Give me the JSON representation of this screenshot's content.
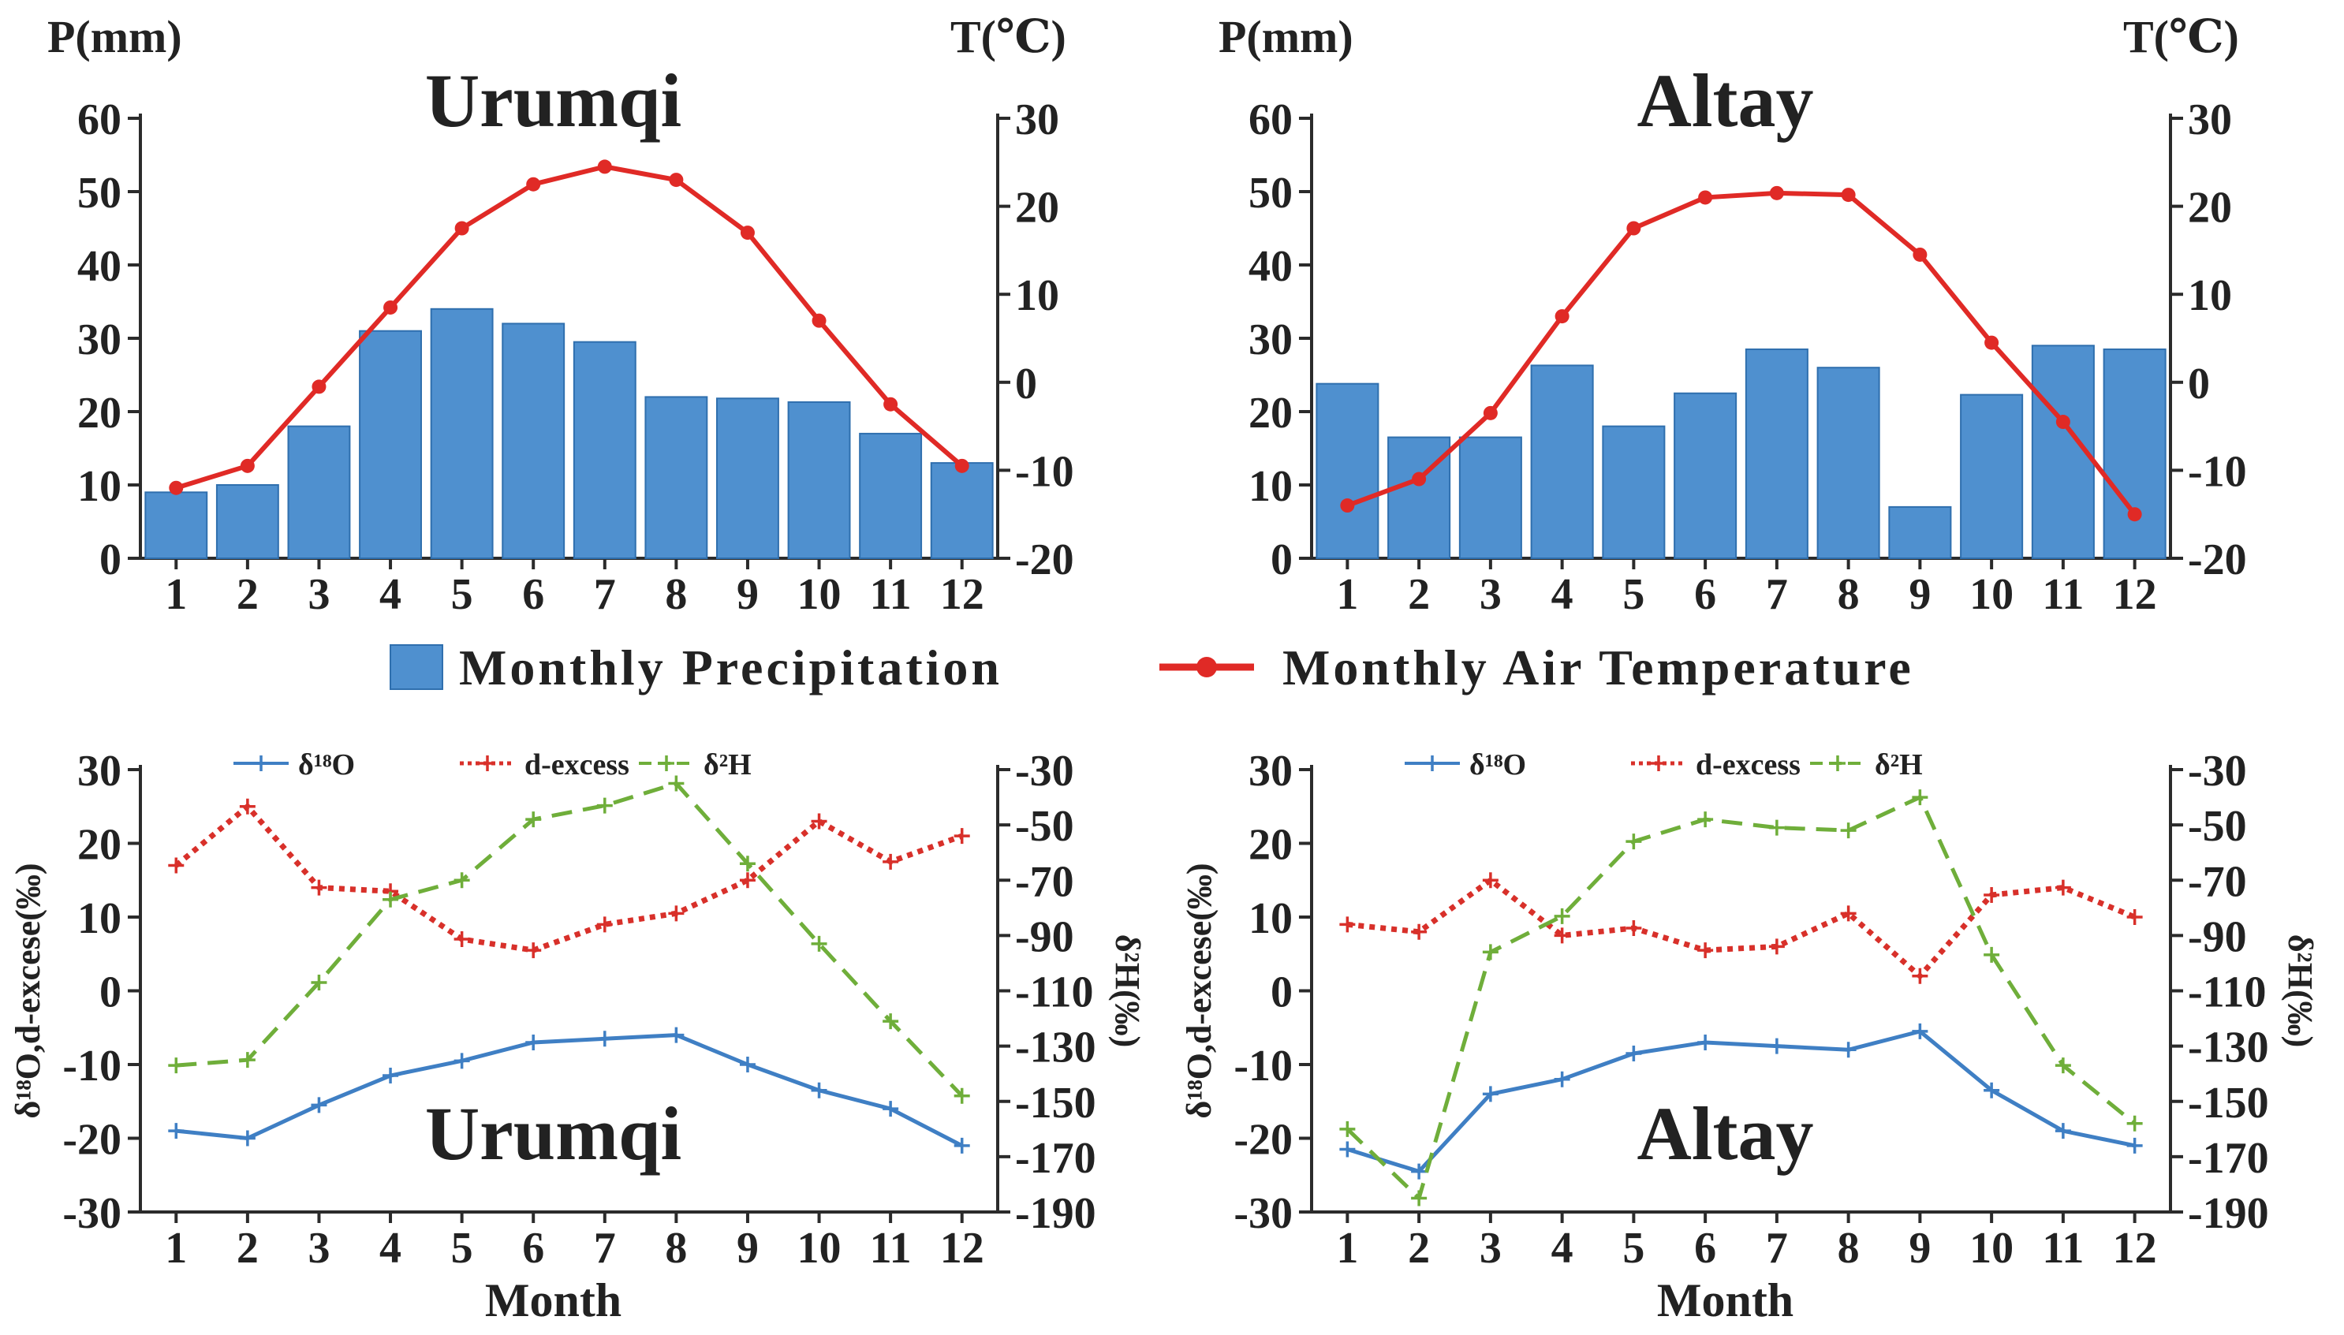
{
  "legend": {
    "precip_label": "Monthly Precipitation",
    "temp_label": "Monthly Air Temperature"
  },
  "colors": {
    "bar": "#4f90cf",
    "bar_edge": "#2f6fae",
    "temperature": "#e02a26",
    "d18o": "#3f7fc4",
    "dexcess": "#d8302a",
    "d2h": "#6fae3a",
    "axis": "#2b2b2b"
  },
  "chart_data": [
    {
      "type": "bar",
      "title": "Urumqi",
      "xlabel": "",
      "ylabel": "P(mm)",
      "y2label": "T(℃)",
      "categories": [
        "1",
        "2",
        "3",
        "4",
        "5",
        "6",
        "7",
        "8",
        "9",
        "10",
        "11",
        "12"
      ],
      "ylim": [
        0,
        60
      ],
      "yticks": [
        0,
        10,
        20,
        30,
        40,
        50,
        60
      ],
      "y2lim": [
        -20,
        30
      ],
      "y2ticks": [
        -20,
        -10,
        0,
        10,
        20,
        30
      ],
      "series": [
        {
          "name": "Monthly Precipitation",
          "kind": "bar",
          "axis": "left",
          "values": [
            9,
            10,
            18,
            31,
            34,
            32,
            29.5,
            22,
            21.8,
            21.3,
            17,
            13
          ]
        },
        {
          "name": "Monthly Air Temperature",
          "kind": "line",
          "axis": "right",
          "values": [
            -12,
            -9.5,
            -0.5,
            8.5,
            17.5,
            22.5,
            24.5,
            23,
            17,
            7,
            -2.5,
            -9.5
          ]
        }
      ]
    },
    {
      "type": "bar",
      "title": "Altay",
      "xlabel": "",
      "ylabel": "P(mm)",
      "y2label": "T(℃)",
      "categories": [
        "1",
        "2",
        "3",
        "4",
        "5",
        "6",
        "7",
        "8",
        "9",
        "10",
        "11",
        "12"
      ],
      "ylim": [
        0,
        60
      ],
      "yticks": [
        0,
        10,
        20,
        30,
        40,
        50,
        60
      ],
      "y2lim": [
        -20,
        30
      ],
      "y2ticks": [
        -20,
        -10,
        0,
        10,
        20,
        30
      ],
      "series": [
        {
          "name": "Monthly Precipitation",
          "kind": "bar",
          "axis": "left",
          "values": [
            23.8,
            16.5,
            16.5,
            26.3,
            18,
            22.5,
            28.5,
            26,
            7,
            22.3,
            29,
            28.5
          ]
        },
        {
          "name": "Monthly Air Temperature",
          "kind": "line",
          "axis": "right",
          "values": [
            -14,
            -11,
            -3.5,
            7.5,
            17.5,
            21,
            21.5,
            21.3,
            14.5,
            4.5,
            -4.5,
            -15
          ]
        }
      ]
    },
    {
      "type": "line",
      "title": "Urumqi",
      "xlabel": "Month",
      "ylabel": "δ¹⁸O,d-excese(‰)",
      "y2label": "δ²H(‰)",
      "categories": [
        "1",
        "2",
        "3",
        "4",
        "5",
        "6",
        "7",
        "8",
        "9",
        "10",
        "11",
        "12"
      ],
      "ylim": [
        -30,
        30
      ],
      "yticks": [
        -30,
        -20,
        -10,
        0,
        10,
        20,
        30
      ],
      "y2lim": [
        -190,
        -30
      ],
      "y2ticks": [
        -190,
        -170,
        -150,
        -130,
        -110,
        -90,
        -70,
        -50,
        -30
      ],
      "legend": [
        "δ¹⁸O",
        "d-excess",
        "δ²H"
      ],
      "series": [
        {
          "name": "δ¹⁸O",
          "axis": "left",
          "values": [
            -19,
            -20,
            -15.5,
            -11.5,
            -9.5,
            -7,
            -6.5,
            -6,
            -10,
            -13.5,
            -16,
            -21
          ]
        },
        {
          "name": "d-excess",
          "axis": "left",
          "values": [
            17,
            25,
            14,
            13.5,
            7,
            5.5,
            9,
            10.5,
            15,
            23,
            17.5,
            21
          ]
        },
        {
          "name": "δ²H",
          "axis": "right",
          "values": [
            -137,
            -135,
            -107,
            -77,
            -70,
            -48,
            -43,
            -35,
            -64,
            -93,
            -121,
            -148
          ]
        }
      ]
    },
    {
      "type": "line",
      "title": "Altay",
      "xlabel": "Month",
      "ylabel": "δ¹⁸O,d-excese(‰)",
      "y2label": "δ²H(‰)",
      "categories": [
        "1",
        "2",
        "3",
        "4",
        "5",
        "6",
        "7",
        "8",
        "9",
        "10",
        "11",
        "12"
      ],
      "ylim": [
        -30,
        30
      ],
      "yticks": [
        -30,
        -20,
        -10,
        0,
        10,
        20,
        30
      ],
      "y2lim": [
        -190,
        -30
      ],
      "y2ticks": [
        -190,
        -170,
        -150,
        -130,
        -110,
        -90,
        -70,
        -50,
        -30
      ],
      "legend": [
        "δ¹⁸O",
        "d-excess",
        "δ²H"
      ],
      "series": [
        {
          "name": "δ¹⁸O",
          "axis": "left",
          "values": [
            -21.5,
            -24.5,
            -14,
            -12,
            -8.5,
            -7,
            -7.5,
            -8,
            -5.5,
            -13.5,
            -19,
            -21
          ]
        },
        {
          "name": "d-excess",
          "axis": "left",
          "values": [
            9,
            8,
            15,
            7.5,
            8.5,
            5.5,
            6,
            10.5,
            2,
            13,
            14,
            10
          ]
        },
        {
          "name": "δ²H",
          "axis": "right",
          "values": [
            -160,
            -185,
            -96,
            -83,
            -56,
            -48,
            -51,
            -52,
            -40,
            -97,
            -137,
            -158
          ]
        }
      ]
    }
  ]
}
